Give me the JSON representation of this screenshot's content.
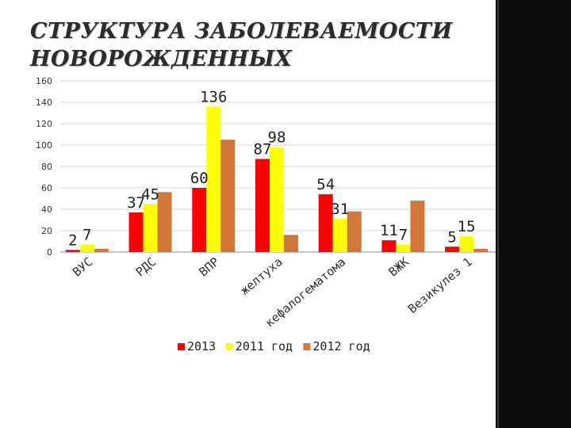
{
  "slide": {
    "title": "СТРУКТУРА ЗАБОЛЕВАЕМОСТИ НОВОРОЖДЕННЫХ"
  },
  "chart_data": {
    "type": "bar",
    "title": "",
    "xlabel": "",
    "ylabel": "",
    "ylim": [
      0,
      160
    ],
    "yticks": [
      0,
      20,
      40,
      60,
      80,
      100,
      120,
      140,
      160
    ],
    "grid": true,
    "legend_position": "bottom",
    "categories": [
      "ВУС",
      "РДС",
      "ВПР",
      "желтуха",
      "кефалогематома",
      "ВЖК",
      "Везикулез 1"
    ],
    "series": [
      {
        "name": "2013",
        "color": "#ff0000",
        "values": [
          2,
          37,
          60,
          87,
          54,
          11,
          5
        ]
      },
      {
        "name": "2011 год",
        "color": "#ffff00",
        "values": [
          7,
          45,
          136,
          98,
          31,
          7,
          15
        ]
      },
      {
        "name": "2012 год",
        "color": "#d2773a",
        "values": [
          3,
          56,
          105,
          16,
          38,
          48,
          3
        ]
      }
    ],
    "data_labels": [
      {
        "category": 0,
        "series": 0,
        "text": "2"
      },
      {
        "category": 0,
        "series": 1,
        "text": "7"
      },
      {
        "category": 1,
        "series": 0,
        "text": "37"
      },
      {
        "category": 1,
        "series": 1,
        "text": "45"
      },
      {
        "category": 2,
        "series": 0,
        "text": "60"
      },
      {
        "category": 2,
        "series": 1,
        "text": "136"
      },
      {
        "category": 3,
        "series": 0,
        "text": "87"
      },
      {
        "category": 3,
        "series": 1,
        "text": "98"
      },
      {
        "category": 4,
        "series": 0,
        "text": "54"
      },
      {
        "category": 4,
        "series": 1,
        "text": "31"
      },
      {
        "category": 5,
        "series": 0,
        "text": "11"
      },
      {
        "category": 5,
        "series": 1,
        "text": "7"
      },
      {
        "category": 6,
        "series": 0,
        "text": "5"
      },
      {
        "category": 6,
        "series": 1,
        "text": "15"
      }
    ]
  }
}
